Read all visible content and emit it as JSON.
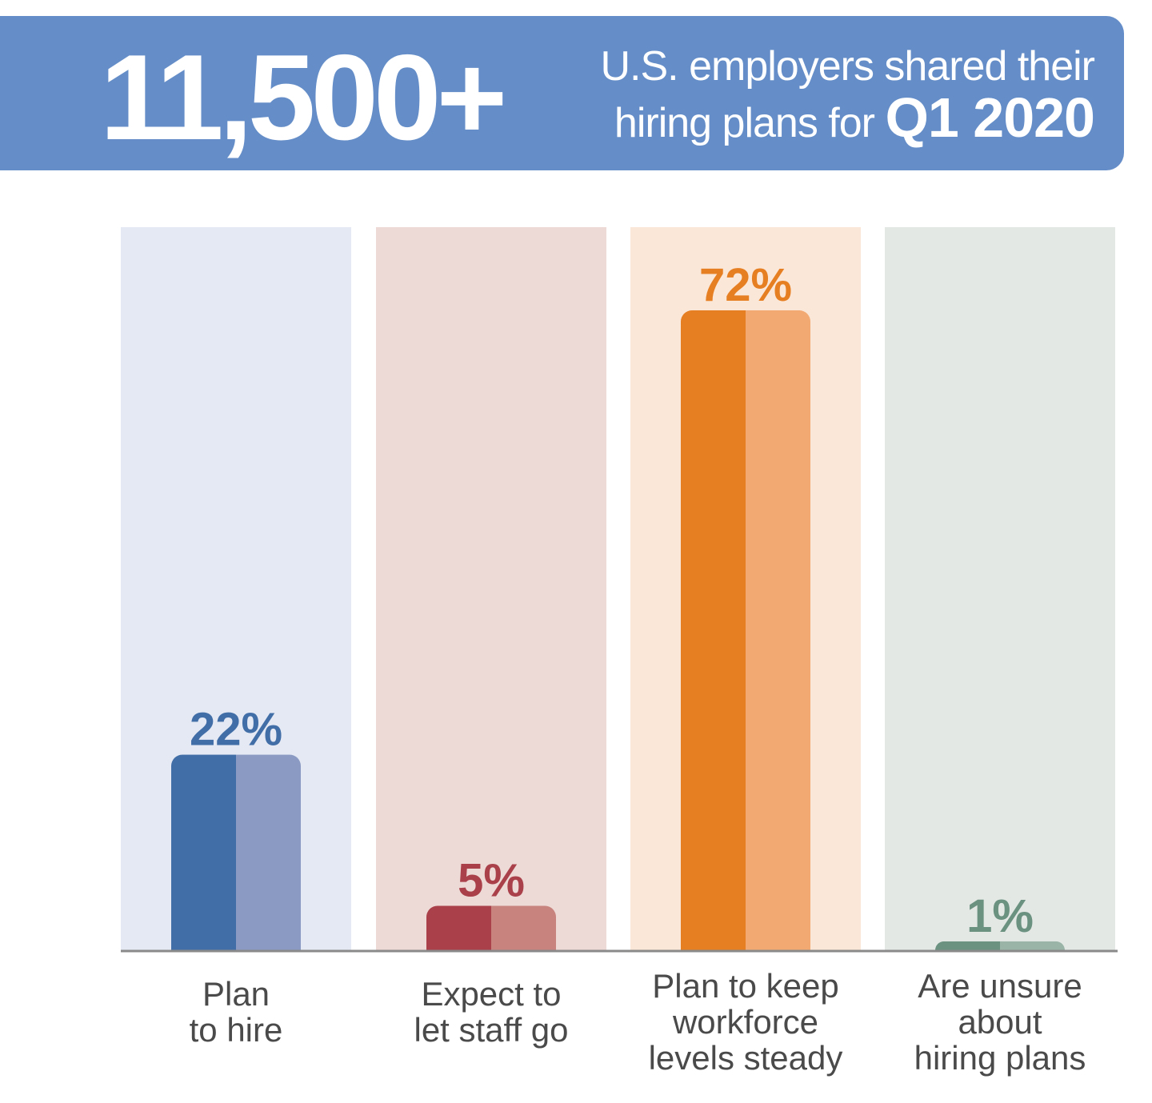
{
  "header": {
    "number": "11,500+",
    "line1": "U.S. employers shared their",
    "line2_prefix": "hiring plans for ",
    "line2_emphasis": "Q1 2020"
  },
  "colors": {
    "banner": "#658ec8",
    "baseline": "#8a8a8a"
  },
  "chart_data": {
    "type": "bar",
    "categories": [
      "Plan\nto hire",
      "Expect to\nlet staff go",
      "Plan to keep\nworkforce\nlevels steady",
      "Are unsure\nabout\nhiring plans"
    ],
    "values": [
      22,
      5,
      72,
      1
    ],
    "value_labels": [
      "22%",
      "5%",
      "72%",
      "1%"
    ],
    "ylim": [
      0,
      72
    ],
    "grid": false,
    "legend": "none",
    "series_colors": [
      {
        "bg": "#e4e9f4",
        "dark": "#426ea7",
        "light": "#8a9ac3",
        "label": "#426ea7"
      },
      {
        "bg": "#eddad6",
        "dark": "#a9404a",
        "light": "#c8837e",
        "label": "#a9404a"
      },
      {
        "bg": "#fbe7d7",
        "dark": "#e67e22",
        "light": "#f2aa72",
        "label": "#e67e22"
      },
      {
        "bg": "#e3e8e5",
        "dark": "#6b9180",
        "light": "#9ab5a8",
        "label": "#6b9180"
      }
    ]
  }
}
